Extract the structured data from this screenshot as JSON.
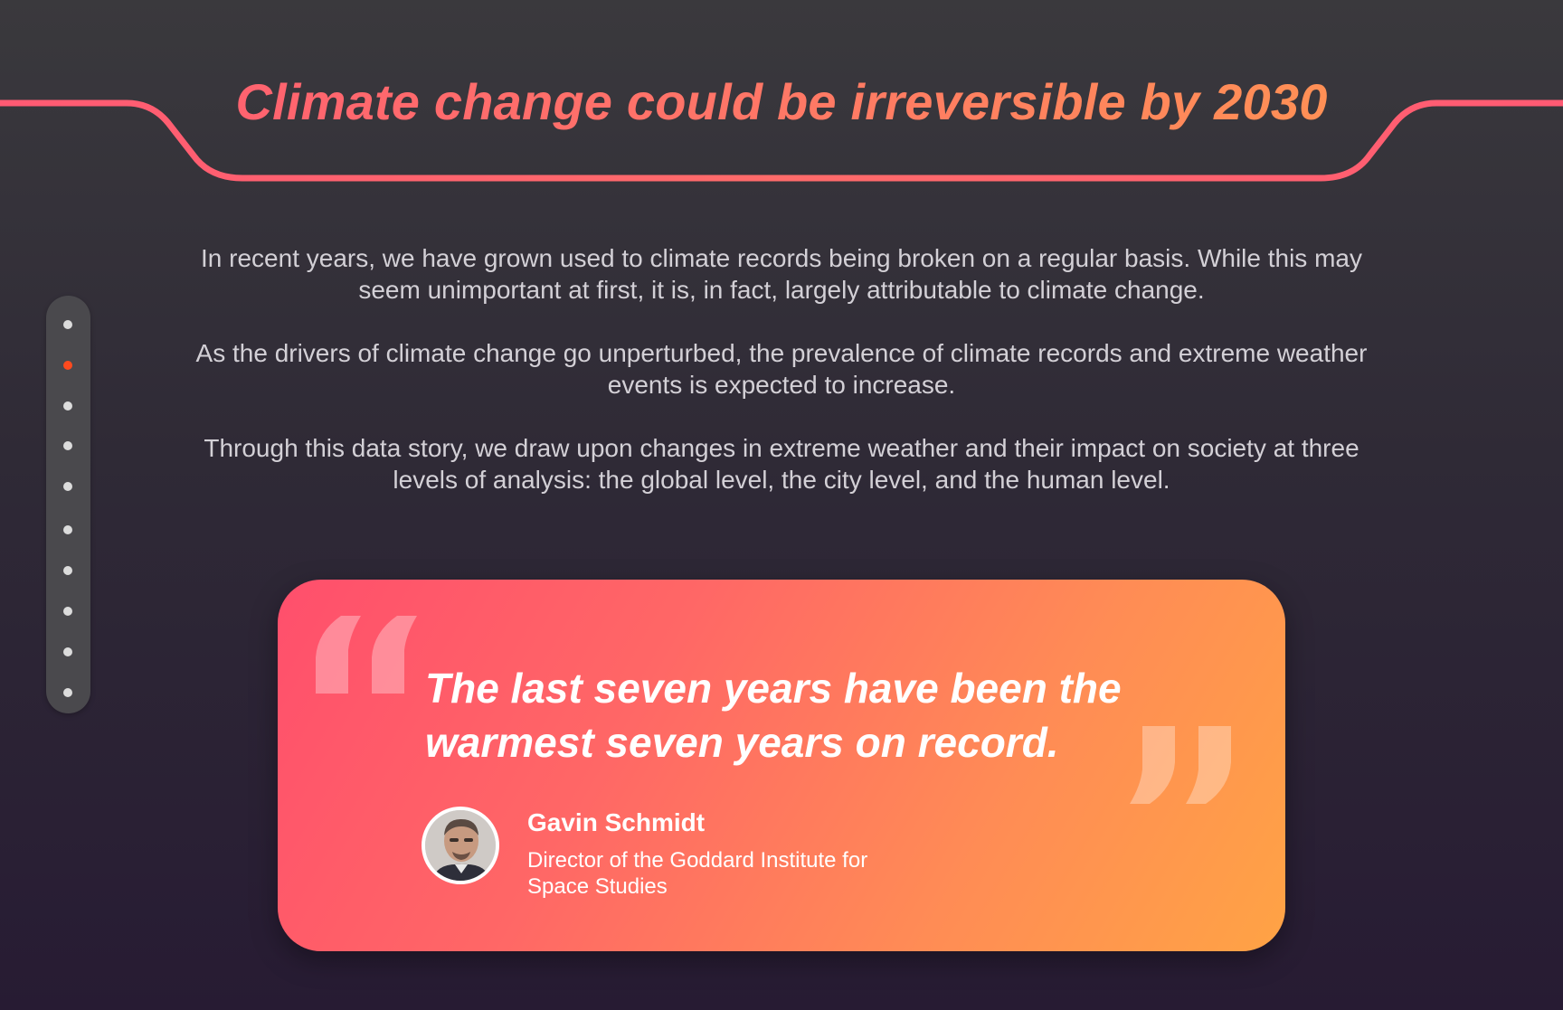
{
  "header": {
    "title": "Climate change could be irreversible by 2030"
  },
  "intro": {
    "paragraphs": [
      "In recent years, we have grown used to climate records being broken on a regular basis. While this may seem unimportant at first, it is, in fact, largely attributable to climate change.",
      "As the drivers of climate change go unperturbed, the prevalence of climate records and extreme weather events is expected to increase.",
      "Through this data story, we draw upon changes in extreme weather and their impact on society at three levels of analysis: the global level, the city level, and the human level."
    ]
  },
  "sidenav": {
    "dot_count": 10,
    "active_index": 1,
    "active_color": "#ff4a1e",
    "dot_color": "#dcdcdc"
  },
  "quote": {
    "text": "The last seven years have been the warmest seven years on record.",
    "author_name": "Gavin Schmidt",
    "author_role": "Director of the Goddard Institute for Space Studies",
    "open_mark_icon": "open-quote-icon",
    "close_mark_icon": "close-quote-icon"
  },
  "colors": {
    "accent_pink": "#ff5a73",
    "accent_orange": "#ff9a4e",
    "text_light": "#d3d0d6"
  }
}
